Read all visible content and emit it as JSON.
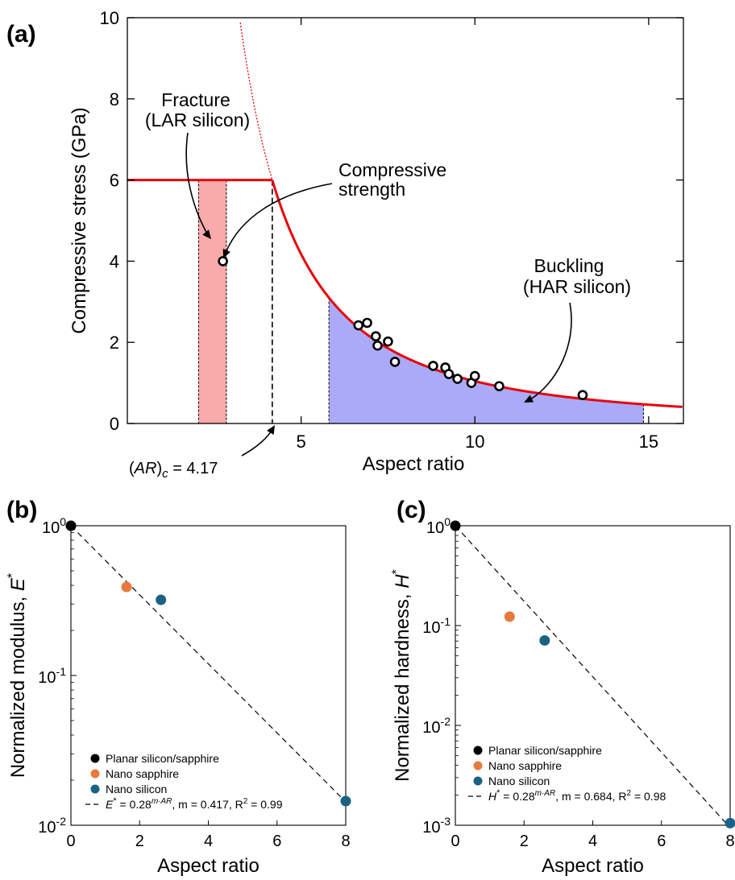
{
  "panels": [
    {
      "id": "a",
      "label": "(a)"
    },
    {
      "id": "b",
      "label": "(b)"
    },
    {
      "id": "c",
      "label": "(c)"
    }
  ],
  "chart_data": [
    {
      "id": "a",
      "type": "line",
      "xlabel": "Aspect ratio",
      "ylabel": "Compressive stress (GPa)",
      "xlim": [
        0,
        16
      ],
      "ylim": [
        0,
        10
      ],
      "xticks": [
        5,
        10,
        15
      ],
      "yticks": [
        0,
        2,
        4,
        6,
        8,
        10
      ],
      "grid": false,
      "colors": {
        "curve": "#e8000b",
        "fracture_band": "#f9aaaa",
        "buckling_fill": "#aaaaf8"
      },
      "fracture_limit": {
        "y": 6,
        "x_range": [
          0,
          4.17
        ]
      },
      "buckling_curve": {
        "type": "1/x^2",
        "passes_through": [
          4.17,
          6
        ],
        "x_range": [
          4.17,
          16
        ]
      },
      "buckling_extrapolation": {
        "x_range": [
          3.25,
          4.17
        ],
        "style": "dotted"
      },
      "fracture_band_x": [
        2.05,
        2.85
      ],
      "buckling_fill_x": [
        5.8,
        14.85
      ],
      "critical_ar": 4.17,
      "series": [
        {
          "points": [
            [
              2.75,
              4.0
            ],
            [
              6.65,
              2.42
            ],
            [
              6.9,
              2.48
            ],
            [
              7.15,
              2.15
            ],
            [
              7.2,
              1.92
            ],
            [
              7.5,
              2.02
            ],
            [
              7.7,
              1.52
            ],
            [
              8.8,
              1.42
            ],
            [
              9.15,
              1.38
            ],
            [
              9.25,
              1.22
            ],
            [
              9.5,
              1.1
            ],
            [
              9.9,
              1.0
            ],
            [
              10.0,
              1.17
            ],
            [
              10.7,
              0.92
            ],
            [
              13.1,
              0.7
            ]
          ]
        }
      ],
      "annotations": {
        "fracture": [
          "Fracture",
          "(LAR silicon)"
        ],
        "compressive": [
          "Compressive",
          "strength"
        ],
        "buckling": [
          "Buckling",
          "(HAR silicon)"
        ],
        "critical": {
          "left": "(",
          "ar": "AR",
          "right": ")",
          "sub": "c",
          "value": " = 4.17"
        }
      }
    },
    {
      "id": "b",
      "type": "scatter",
      "xlabel": "Aspect ratio",
      "ylabel": {
        "text": "Normalized modulus, ",
        "symbol": "E",
        "sup": "*"
      },
      "xlim": [
        0,
        8
      ],
      "ylim_log10": [
        -2,
        0
      ],
      "yscale": "log",
      "xticks": [
        0,
        2,
        4,
        6,
        8
      ],
      "yticks": [
        {
          "base": "10",
          "exp": "-2",
          "v": -2
        },
        {
          "base": "10",
          "exp": "-1",
          "v": -1
        },
        {
          "base": "10",
          "exp": "0",
          "v": 0
        }
      ],
      "grid": false,
      "legend_position": "bottom-left",
      "series": [
        {
          "name": "Planar silicon/sapphire",
          "color": "#000000",
          "points": [
            [
              0,
              1.0
            ]
          ]
        },
        {
          "name": "Nano sapphire",
          "color": "#e8793c",
          "points": [
            [
              1.62,
              0.39
            ]
          ]
        },
        {
          "name": "Nano silicon",
          "color": "#1a6285",
          "points": [
            [
              2.62,
              0.32
            ],
            [
              8.0,
              0.0145
            ]
          ]
        }
      ],
      "fit": {
        "m": 0.417,
        "legend": {
          "sym": "E",
          "star": "*",
          "eq": " = 0.28",
          "sup": "m·AR",
          "mtxt": ", m = 0.417, R",
          "r2": "2",
          "r2val": " = 0.99"
        }
      }
    },
    {
      "id": "c",
      "type": "scatter",
      "xlabel": "Aspect ratio",
      "ylabel": {
        "text": "Normalized hardness, ",
        "symbol": "H",
        "sup": "*"
      },
      "xlim": [
        0,
        8
      ],
      "ylim_log10": [
        -3,
        0
      ],
      "yscale": "log",
      "xticks": [
        0,
        2,
        4,
        6,
        8
      ],
      "yticks": [
        {
          "base": "10",
          "exp": "-3",
          "v": -3
        },
        {
          "base": "10",
          "exp": "-2",
          "v": -2
        },
        {
          "base": "10",
          "exp": "-1",
          "v": -1
        },
        {
          "base": "10",
          "exp": "0",
          "v": 0
        }
      ],
      "grid": false,
      "legend_position": "bottom-left",
      "series": [
        {
          "name": "Planar silicon/sapphire",
          "color": "#000000",
          "points": [
            [
              0,
              1.0
            ]
          ]
        },
        {
          "name": "Nano sapphire",
          "color": "#e8793c",
          "points": [
            [
              1.58,
              0.123
            ]
          ]
        },
        {
          "name": "Nano silicon",
          "color": "#1a6285",
          "points": [
            [
              2.6,
              0.071
            ],
            [
              8.0,
              0.00105
            ]
          ]
        }
      ],
      "fit": {
        "m": 0.684,
        "legend": {
          "sym": "H",
          "star": "*",
          "eq": " = 0.28",
          "sup": "m·AR",
          "mtxt": ", m = 0.684, R",
          "r2": "2",
          "r2val": " = 0.98"
        }
      }
    }
  ]
}
